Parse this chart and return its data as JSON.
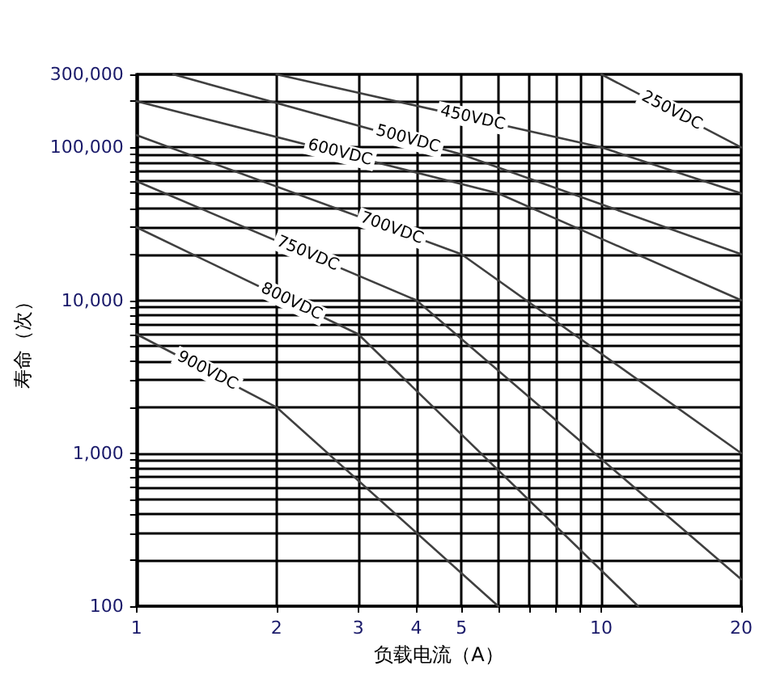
{
  "chart_data": {
    "type": "line",
    "xlabel": "负载电流（A）",
    "ylabel": "寿命（次）",
    "log": "xy",
    "grid": true,
    "legend": false,
    "marker": "none",
    "line_style": "solid",
    "xlim": [
      1,
      20
    ],
    "xticks": [
      1,
      2,
      3,
      4,
      5,
      {
        "value": 6,
        "label": null
      },
      {
        "value": 7,
        "label": null
      },
      {
        "value": 8,
        "label": null
      },
      {
        "value": 9,
        "label": null
      },
      10,
      20
    ],
    "ylim": [
      100,
      300000
    ],
    "yticks": [
      {
        "value": 100,
        "label": "100"
      },
      {
        "value": 200,
        "label": null
      },
      {
        "value": 300,
        "label": null
      },
      {
        "value": 400,
        "label": null
      },
      {
        "value": 500,
        "label": null
      },
      {
        "value": 600,
        "label": null
      },
      {
        "value": 700,
        "label": null
      },
      {
        "value": 800,
        "label": null
      },
      {
        "value": 900,
        "label": null
      },
      {
        "value": 1000,
        "label": "1,000"
      },
      {
        "value": 2000,
        "label": null
      },
      {
        "value": 3000,
        "label": null
      },
      {
        "value": 4000,
        "label": null
      },
      {
        "value": 5000,
        "label": null
      },
      {
        "value": 6000,
        "label": null
      },
      {
        "value": 7000,
        "label": null
      },
      {
        "value": 8000,
        "label": null
      },
      {
        "value": 9000,
        "label": null
      },
      {
        "value": 10000,
        "label": "10,000"
      },
      {
        "value": 20000,
        "label": null
      },
      {
        "value": 30000,
        "label": null
      },
      {
        "value": 40000,
        "label": null
      },
      {
        "value": 50000,
        "label": null
      },
      {
        "value": 60000,
        "label": null
      },
      {
        "value": 70000,
        "label": null
      },
      {
        "value": 80000,
        "label": null
      },
      {
        "value": 90000,
        "label": null
      },
      {
        "value": 100000,
        "label": "100,000"
      },
      {
        "value": 200000,
        "label": null
      },
      {
        "value": 300000,
        "label": "300,000"
      }
    ],
    "series": [
      {
        "name": "250VDC",
        "color": "#404040",
        "x": [
          10,
          20
        ],
        "values": [
          300000,
          100000
        ]
      },
      {
        "name": "450VDC",
        "color": "#404040",
        "x": [
          2,
          10,
          20
        ],
        "values": [
          300000,
          100000,
          50000
        ]
      },
      {
        "name": "500VDC",
        "color": "#404040",
        "x": [
          1.2,
          5,
          20
        ],
        "values": [
          300000,
          90000,
          20000
        ]
      },
      {
        "name": "600VDC",
        "color": "#404040",
        "x": [
          1,
          6,
          20
        ],
        "values": [
          200000,
          50000,
          10000
        ]
      },
      {
        "name": "700VDC",
        "color": "#404040",
        "x": [
          1,
          5,
          20
        ],
        "values": [
          120000,
          20000,
          1000
        ]
      },
      {
        "name": "750VDC",
        "color": "#404040",
        "x": [
          1,
          4,
          20
        ],
        "values": [
          60000,
          10000,
          150
        ]
      },
      {
        "name": "800VDC",
        "color": "#404040",
        "x": [
          1,
          3,
          12
        ],
        "values": [
          30000,
          6000,
          100
        ]
      },
      {
        "name": "900VDC",
        "color": "#404040",
        "x": [
          1,
          2,
          6
        ],
        "values": [
          6000,
          2000,
          100
        ]
      }
    ]
  }
}
